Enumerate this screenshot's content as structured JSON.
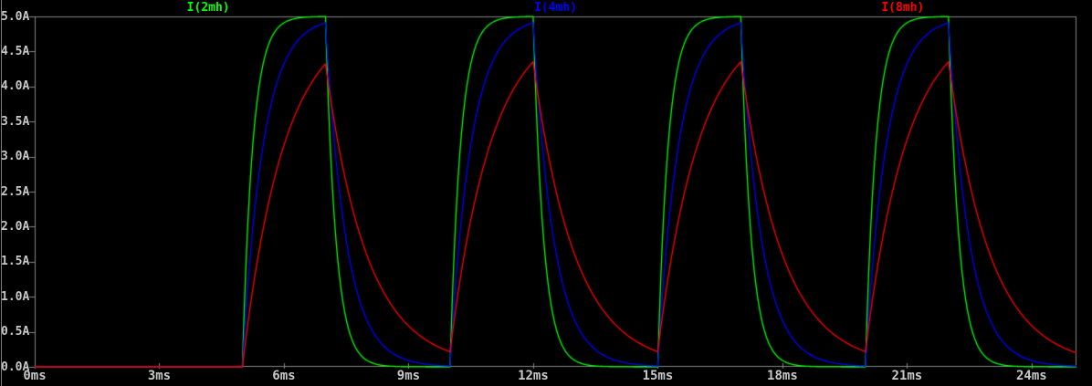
{
  "window": {
    "background_color": "#000000",
    "border_color": "#878787",
    "axis_text_color": "#c8c8c8"
  },
  "chart_data": {
    "type": "line",
    "title": "",
    "description": "RL inductor charge/discharge current waveforms for three inductances driven by a periodic pulse; exponential rise toward 5A while pulse is on, exponential decay while off",
    "x_axis": {
      "unit": "ms",
      "range_ms": [
        0,
        25.08
      ],
      "ticks_ms": [
        0,
        3,
        6,
        9,
        12,
        15,
        18,
        21,
        24
      ],
      "tick_labels": [
        "0ms",
        "3ms",
        "6ms",
        "9ms",
        "12ms",
        "15ms",
        "18ms",
        "21ms",
        "24ms"
      ]
    },
    "y_axis": {
      "unit": "A",
      "range_a": [
        0,
        5
      ],
      "ticks_a": [
        5.0,
        4.5,
        4.0,
        3.5,
        3.0,
        2.5,
        2.0,
        1.5,
        1.0,
        0.5,
        0.0
      ],
      "tick_labels": [
        "5.0A",
        "4.5A",
        "4.0A",
        "3.5A",
        "3.0A",
        "2.5A",
        "2.0A",
        "1.5A",
        "1.0A",
        "0.5A",
        "0.0A"
      ]
    },
    "grid": "border-and-ticks-only, no interior gridlines",
    "legend_position": "top, spread across pane",
    "drive": {
      "type": "pulse",
      "amplitude_a": 5,
      "pulses_on_ms": [
        [
          5,
          7
        ],
        [
          10,
          12
        ],
        [
          15,
          17
        ],
        [
          20,
          22
        ]
      ],
      "value_before_first_pulse_a": 0
    },
    "series": [
      {
        "name": "I(2mh)",
        "color": "#00ff00",
        "tau_ms": 0.25,
        "peak_times_ms": [
          7,
          12,
          17,
          22
        ],
        "peaks_a": [
          5.0,
          5.0,
          5.0,
          5.0
        ],
        "min_between_pulses_a": 0.0
      },
      {
        "name": "I(4mh)",
        "color": "#0000ff",
        "tau_ms": 0.5,
        "peak_times_ms": [
          7,
          12,
          17,
          22
        ],
        "peaks_a": [
          4.91,
          4.91,
          4.91,
          4.91
        ],
        "min_between_pulses_a": 0.01
      },
      {
        "name": "I(8mh)",
        "color": "#ff0000",
        "tau_ms": 1.0,
        "peak_times_ms": [
          7,
          12,
          17,
          22
        ],
        "peaks_a": [
          4.32,
          4.35,
          4.35,
          4.35
        ],
        "min_between_pulses_a": 0.22
      }
    ]
  }
}
